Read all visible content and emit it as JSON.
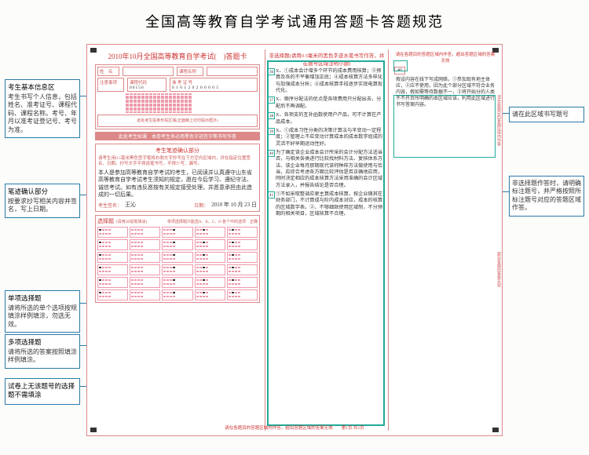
{
  "title": "全国高等教育自学考试通用答题卡答题规范",
  "callouts": {
    "left": [
      {
        "title": "考生基本信息区",
        "desc": "考生书写个人信息，包括姓名、准考证号、课程代码、课程名称。考号、年月以准考证登记号、考号为准。"
      },
      {
        "title": "笔迹确认部分",
        "desc": "按要求抄写相关内容并签名，写上日期。"
      },
      {
        "title": "单项选择题",
        "desc": "请将所选的单个选项按规填涂样例填涂，勿选无效。"
      },
      {
        "title": "多项选择题",
        "desc": "请将所选的答案按照填涂样例填涂。"
      },
      {
        "title": "试卷上无该题号的选择题不需填涂",
        "desc": ""
      }
    ],
    "right": [
      {
        "title": "",
        "desc": "请在此区域书写题号"
      },
      {
        "title": "",
        "desc": "非选择题作答时，请明确标注题号，并严格按照所标注题号对应的答题区域作答。"
      }
    ]
  },
  "sheet": {
    "header": "2010年10月全国高等教育自学考试(　)答题卡",
    "info": {
      "name_label": "姓　名",
      "course_label": "课程名称",
      "notice_label": "注意事项",
      "code_label": "课程代码",
      "code_value": "00156",
      "exam_id_label": "准 考 证 号",
      "exam_id_value": "0 1 0 1 2 0 2 0 0 0 0 5",
      "barcode_hint": "此处考生贴条形码区域(正面朝上切勿贴出框外)",
      "red_bar": "此处考生贴课　本卷考生务必用黑色字迹签字笔书写作答"
    },
    "confirm": {
      "title": "考生笔迹确认部分",
      "rule": "请考生用0.5毫米黑色签字笔将右侧文字抄写在下方空白区域内，并在指定位置签名、日期。抄写文字不得连笔书写，不得少写、漏写。",
      "handwriting": "本人是参加高等教育自学考试的考生，已阅读并认真遵守山东省高等教育自学考试考生须知的规定，愿在今后学习、遵纪守法、诚信考试。如有违反愿按有关规定接受处理，并愿意承担由此造成的一切后果。",
      "sign_label": "考生签名：",
      "sign_value": "王沁",
      "date_label": "日期：",
      "date_value": "2010 年 10 月 23 日"
    },
    "mc": {
      "title": "选择题",
      "sub1": "(请用2B铅笔填涂)",
      "sub2": "单项选择题只能选A、B、C、D 各个中的选项　正确",
      "rows": 6,
      "cols": 5
    },
    "nmc": {
      "title": "非选择题(请用0.5毫米的黑色字迹水笔书写作答，并在题号区域注明小题)",
      "answers": [
        {
          "n": "36",
          "t": "X、①成本会计增多个环节的成本费用核算；②预算及各的不平衡增加正底；④成本核算方法多样化与加强成本分析；④成本核算手段逐步实现电算现代化。"
        },
        {
          "n": "37",
          "t": "X、顺序分配法的优点是各项费用只分配出去，分配后不再调配。"
        },
        {
          "n": "38",
          "t": "X、各项支的互补函数使用户产品，可不计算在产品成本。"
        },
        {
          "n": "39",
          "t": "X、①成本习性分类的决策计算法与半变动一定程度；②管理上不应变动计算成本的成本数字组成的灵活不好早期运动性好。"
        },
        {
          "n": "40",
          "t": "为了确定该企业成本会计所采的会计分配方法适当否，与相关各类进行比较找材料方法、复核体系方法、该企业每月那期现代该何种样方法做使用与恰当，应综合考虑各方面比较评估是否正确地应用，同时决定相应的成本核算方法采用准确的会计区域方法录入，并报告结论是否合理。"
        },
        {
          "n": "41",
          "t": "①不如采取整调应更主算成本核算，按企业随其在财务部门，不计算成与阶内成本对应，成本的核算的区域数字表。②、不够细致使用区域制，不分预期的相关项目，区域核算不合理。"
        }
      ]
    },
    "right": {
      "hint": "请在各题目的答题区域内作答，超出答题区域的答案无效",
      "num": "40",
      "hw": "假设内容在线下写成网络，①参加现有地主体应，②应不使用，因为此个部分区域不符合业务内容，假如需等待数据不一，③将开始分的人类不不开页所明确的本区域应该，利用此区域进行书写答案内容。"
    },
    "footer": "请在各题目的答题区域内作答，超出答题区域的答案无效　　第1页 共2页",
    "vtext1": "请在各题目的答题区域内作答",
    "vtext2": "超出各题的答案无效"
  },
  "style": {
    "accent": "#2a7aa8",
    "green": "#2a9",
    "red": "#c33",
    "pink": "#d88"
  }
}
